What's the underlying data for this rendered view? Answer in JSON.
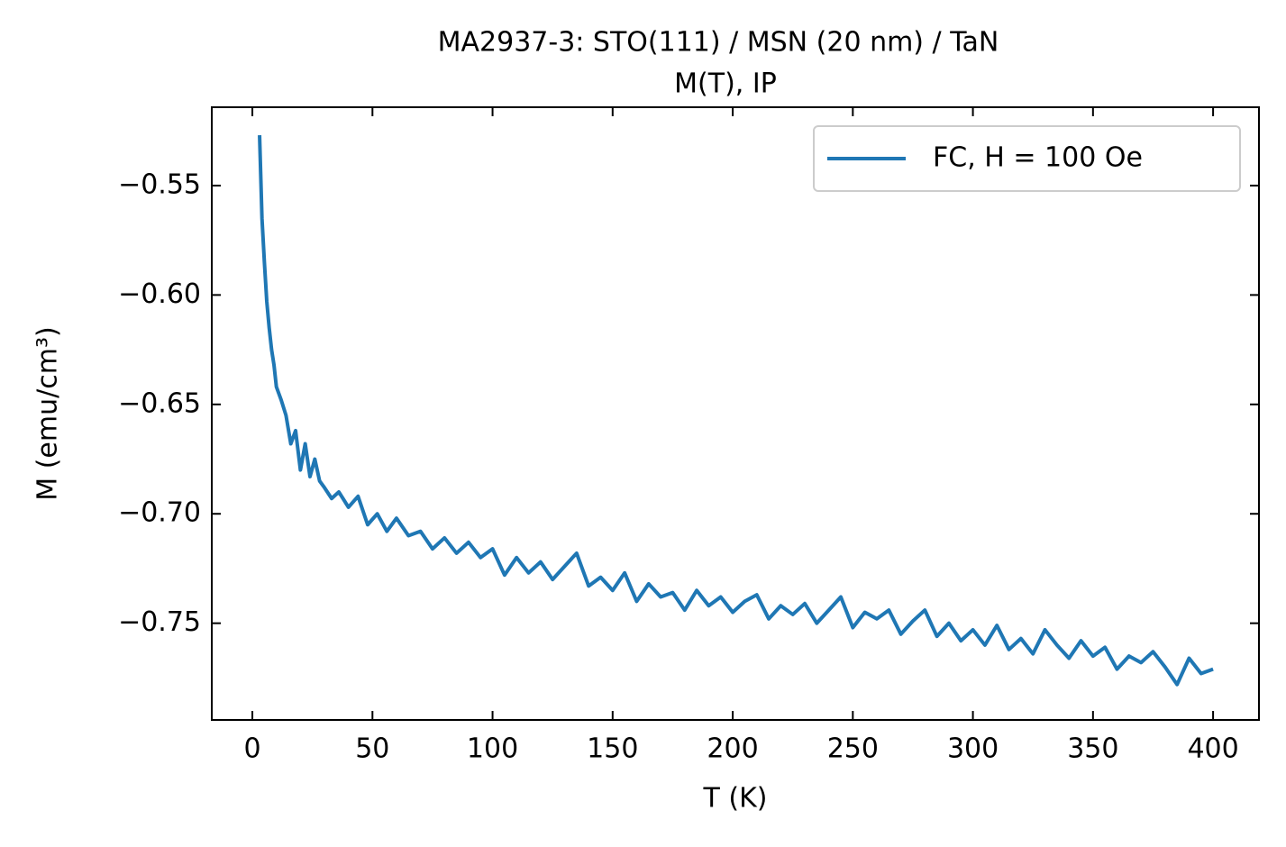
{
  "chart_data": {
    "type": "line",
    "title": "MA2937-3: STO(111)  / MSN (20 nm) / TaN",
    "subtitle": "M(T), IP",
    "x_label": "T (K)",
    "y_label": "M (emu/cm³)",
    "xlim": [
      -16.9,
      419.1
    ],
    "ylim": [
      -0.7942,
      -0.5142
    ],
    "xticks": [
      0,
      50,
      100,
      150,
      200,
      250,
      300,
      350,
      400
    ],
    "yticks": [
      {
        "value": -0.55,
        "label": "−0.55"
      },
      {
        "value": -0.6,
        "label": "−0.60"
      },
      {
        "value": -0.65,
        "label": "−0.65"
      },
      {
        "value": -0.7,
        "label": "−0.70"
      },
      {
        "value": -0.75,
        "label": "−0.75"
      }
    ],
    "legend": "upper right",
    "x": [
      3,
      4,
      5,
      6,
      7,
      8,
      9,
      10,
      12,
      14,
      16,
      18,
      20,
      22,
      24,
      26,
      28,
      30,
      33,
      36,
      40,
      44,
      48,
      52,
      56,
      60,
      65,
      70,
      75,
      80,
      85,
      90,
      95,
      100,
      105,
      110,
      115,
      120,
      125,
      130,
      135,
      140,
      145,
      150,
      155,
      160,
      165,
      170,
      175,
      180,
      185,
      190,
      195,
      200,
      205,
      210,
      215,
      220,
      225,
      230,
      235,
      240,
      245,
      250,
      255,
      260,
      265,
      270,
      275,
      280,
      285,
      290,
      295,
      300,
      305,
      310,
      315,
      320,
      325,
      330,
      335,
      340,
      345,
      350,
      355,
      360,
      365,
      370,
      375,
      380,
      385,
      390,
      395,
      400
    ],
    "series": [
      {
        "name": "FC, H = 100 Oe",
        "color": "#1f77b4",
        "values": [
          -0.527,
          -0.565,
          -0.585,
          -0.603,
          -0.615,
          -0.625,
          -0.632,
          -0.642,
          -0.648,
          -0.655,
          -0.668,
          -0.662,
          -0.68,
          -0.668,
          -0.683,
          -0.675,
          -0.685,
          -0.688,
          -0.693,
          -0.69,
          -0.697,
          -0.692,
          -0.705,
          -0.7,
          -0.708,
          -0.702,
          -0.71,
          -0.708,
          -0.716,
          -0.711,
          -0.718,
          -0.713,
          -0.72,
          -0.716,
          -0.728,
          -0.72,
          -0.727,
          -0.722,
          -0.73,
          -0.724,
          -0.718,
          -0.733,
          -0.729,
          -0.735,
          -0.727,
          -0.74,
          -0.732,
          -0.738,
          -0.736,
          -0.744,
          -0.735,
          -0.742,
          -0.738,
          -0.745,
          -0.74,
          -0.737,
          -0.748,
          -0.742,
          -0.746,
          -0.741,
          -0.75,
          -0.744,
          -0.738,
          -0.752,
          -0.745,
          -0.748,
          -0.744,
          -0.755,
          -0.749,
          -0.744,
          -0.756,
          -0.75,
          -0.758,
          -0.753,
          -0.76,
          -0.751,
          -0.762,
          -0.757,
          -0.764,
          -0.753,
          -0.76,
          -0.766,
          -0.758,
          -0.765,
          -0.761,
          -0.771,
          -0.765,
          -0.768,
          -0.763,
          -0.77,
          -0.778,
          -0.766,
          -0.773,
          -0.771
        ]
      }
    ]
  }
}
